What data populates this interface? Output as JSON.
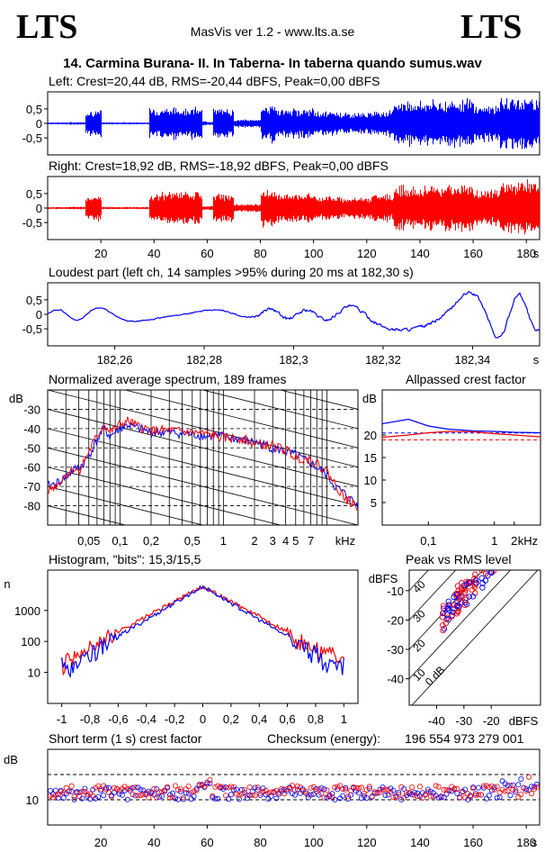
{
  "header": {
    "logo_left": "LTS",
    "logo_right": "LTS",
    "app_title": "MasVis ver 1.2 - www.lts.a.se",
    "file_title": "14. Carmina Burana- II. In Taberna- In taberna quando sumus.wav"
  },
  "colors": {
    "left": "#0000ff",
    "right": "#ff0000",
    "grid": "#000000"
  },
  "chart_data": [
    {
      "id": "left-waveform",
      "type": "line",
      "title": "Left: Crest=20,44 dB, RMS=-20,44 dBFS, Peak=0,00 dBFS",
      "y_ticks": [
        "0,5",
        "0",
        "-0,5"
      ],
      "ylim": [
        -1,
        1
      ],
      "crest_db": 20.44,
      "rms_dbfs": -20.44,
      "peak_dbfs": 0.0
    },
    {
      "id": "right-waveform",
      "type": "line",
      "title": "Right: Crest=18,92 dB, RMS=-18,92 dBFS, Peak=0,00 dBFS",
      "y_ticks": [
        "0,5",
        "0",
        "-0,5"
      ],
      "x_ticks": [
        "20",
        "40",
        "60",
        "80",
        "100",
        "120",
        "140",
        "160",
        "180"
      ],
      "x_unit": "s",
      "xlim": [
        0,
        185
      ],
      "ylim": [
        -1,
        1
      ],
      "crest_db": 18.92,
      "rms_dbfs": -18.92,
      "peak_dbfs": 0.0
    },
    {
      "id": "loudest-part",
      "type": "line",
      "title": "Loudest part (left  ch, 14 samples >95% during 20 ms at 182,30 s)",
      "y_ticks": [
        "0,5",
        "0",
        "-0,5"
      ],
      "x_ticks": [
        "182,26",
        "182,28",
        "182,3",
        "182,32",
        "182,34"
      ],
      "x_unit": "s",
      "xlim": [
        182.245,
        182.355
      ],
      "ylim": [
        -1,
        1
      ]
    },
    {
      "id": "average-spectrum",
      "type": "line",
      "title": "Normalized average spectrum, 189 frames",
      "ylabel": "dB",
      "y_ticks": [
        "-30",
        "-40",
        "-50",
        "-60",
        "-70",
        "-80"
      ],
      "x_ticks": [
        "0,05",
        "0,1",
        "0,2",
        "0,5",
        "1",
        "2",
        "3",
        "4",
        "5",
        "7"
      ],
      "x_unit": "kHz",
      "xlim": [
        0.02,
        20
      ],
      "ylim": [
        -90,
        -20
      ],
      "x_scale": "log",
      "series": [
        {
          "x": [
            0.02,
            0.025,
            0.03,
            0.035,
            0.04,
            0.045,
            0.05,
            0.06,
            0.07,
            0.08,
            0.1,
            0.12,
            0.15,
            0.2,
            0.3,
            0.5,
            0.7,
            1,
            1.5,
            2,
            3,
            4,
            5,
            7,
            10,
            12,
            15,
            20
          ],
          "left": [
            -70,
            -68,
            -65,
            -62,
            -60,
            -58,
            -54,
            -46,
            -40,
            -44,
            -40,
            -38,
            -40,
            -42,
            -42,
            -43,
            -44,
            -44,
            -46,
            -47,
            -50,
            -52,
            -54,
            -58,
            -64,
            -70,
            -74,
            -80
          ],
          "right": [
            -72,
            -69,
            -64,
            -61,
            -62,
            -57,
            -52,
            -44,
            -38,
            -42,
            -38,
            -36,
            -39,
            -41,
            -41,
            -42,
            -43,
            -45,
            -45,
            -48,
            -49,
            -51,
            -55,
            -56,
            -62,
            -69,
            -76,
            -81
          ]
        }
      ]
    },
    {
      "id": "allpassed-crest",
      "type": "line",
      "title": "Allpassed crest factor",
      "ylabel": "dB",
      "y_ticks": [
        "20",
        "15",
        "10",
        "5"
      ],
      "x_ticks": [
        "0,1",
        "1",
        "2"
      ],
      "x_unit": "kHz",
      "xlim": [
        0.02,
        5
      ],
      "ylim": [
        0,
        30
      ],
      "x_scale": "log",
      "series": [
        {
          "x": [
            0.02,
            0.05,
            0.1,
            0.2,
            0.5,
            1,
            2,
            5
          ],
          "left": [
            22.5,
            23.5,
            22.0,
            21.3,
            20.9,
            20.8,
            20.6,
            20.5
          ],
          "right": [
            19.5,
            20.0,
            20.5,
            20.8,
            20.7,
            20.3,
            20.0,
            19.6
          ]
        }
      ],
      "ref_left": 20.44,
      "ref_right": 18.92
    },
    {
      "id": "histogram",
      "type": "line",
      "title": "Histogram, \"bits\": 15,3/15,5",
      "ylabel": "n",
      "y_ticks": [
        "1000",
        "100",
        "10"
      ],
      "x_ticks": [
        "-1",
        "-0,8",
        "-0,6",
        "-0,4",
        "-0,2",
        "0",
        "0,2",
        "0,4",
        "0,6",
        "0,8",
        "1"
      ],
      "xlim": [
        -1.1,
        1.1
      ],
      "ylim": [
        1,
        20000
      ],
      "y_scale": "log",
      "bits_left": 15.3,
      "bits_right": 15.5
    },
    {
      "id": "peak-vs-rms",
      "type": "scatter",
      "title": "Peak vs RMS level",
      "ylabel": "dBFS",
      "xlabel": "dBFS",
      "y_ticks": [
        "-10",
        "-20",
        "-30",
        "-40"
      ],
      "x_ticks": [
        "-40",
        "-30",
        "-20"
      ],
      "crest_labels": [
        "40",
        "30",
        "20",
        "10",
        "0 dB"
      ],
      "xlim": [
        -50,
        -2
      ],
      "ylim": [
        -49,
        -3
      ]
    },
    {
      "id": "short-term-crest",
      "type": "scatter",
      "title": "Short term (1 s) crest factor",
      "ylabel": "dB",
      "y_ticks": [
        "10"
      ],
      "x_ticks": [
        "20",
        "40",
        "60",
        "80",
        "100",
        "120",
        "140",
        "160",
        "180"
      ],
      "x_unit": "s",
      "xlim": [
        0,
        185
      ],
      "ylim": [
        0,
        30
      ],
      "ref_left": 20.44,
      "ref_right": 18.92
    }
  ],
  "checksum": {
    "label": "Checksum (energy):",
    "value": "196 554 973 279 001"
  }
}
